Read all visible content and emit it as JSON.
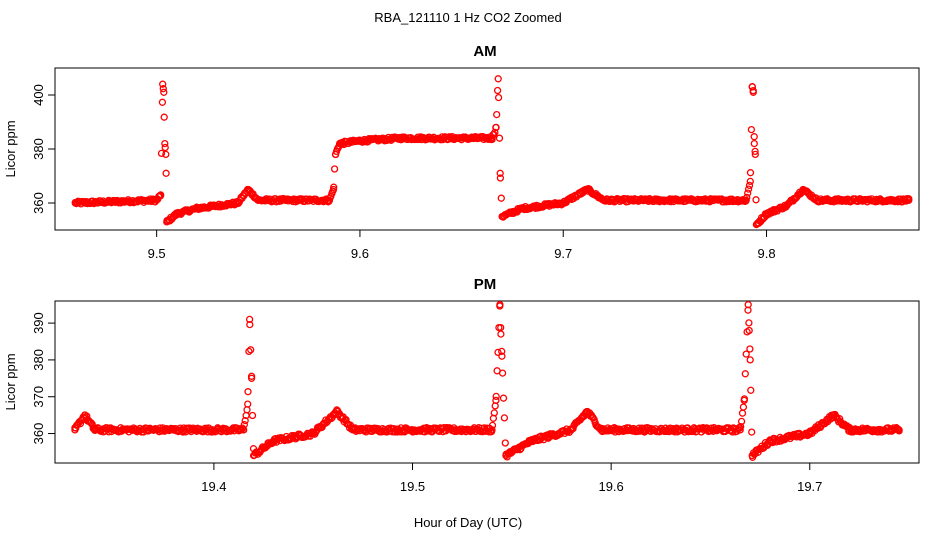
{
  "figure": {
    "title": "RBA_121110  1 Hz CO2 Zoomed",
    "xlabel": "Hour of Day (UTC)"
  },
  "colors": {
    "points": "#ff0000",
    "axis": "#000000",
    "background": "#ffffff"
  },
  "chart_data": [
    {
      "type": "scatter",
      "title": "AM",
      "xlabel": "",
      "ylabel": "Licor ppm",
      "xlim": [
        9.45,
        9.875
      ],
      "ylim": [
        350,
        410
      ],
      "xticks": [
        9.5,
        9.6,
        9.7,
        9.8
      ],
      "xtick_labels": [
        "9.5",
        "9.6",
        "9.7",
        "9.8"
      ],
      "yticks": [
        360,
        380,
        400
      ],
      "ytick_labels": [
        "360",
        "380",
        "400"
      ],
      "grid": false,
      "marker": "open-circle",
      "series_profile": [
        {
          "x": 9.46,
          "y": 360
        },
        {
          "x": 9.5,
          "y": 361
        },
        {
          "x": 9.502,
          "y": 363
        },
        {
          "x": 9.503,
          "y": 404
        },
        {
          "x": 9.5035,
          "y": 401
        },
        {
          "x": 9.504,
          "y": 382
        },
        {
          "x": 9.5045,
          "y": 378
        },
        {
          "x": 9.505,
          "y": 353
        },
        {
          "x": 9.51,
          "y": 356
        },
        {
          "x": 9.52,
          "y": 358
        },
        {
          "x": 9.54,
          "y": 360
        },
        {
          "x": 9.545,
          "y": 365
        },
        {
          "x": 9.55,
          "y": 361
        },
        {
          "x": 9.585,
          "y": 361
        },
        {
          "x": 9.587,
          "y": 365
        },
        {
          "x": 9.588,
          "y": 378
        },
        {
          "x": 9.59,
          "y": 382
        },
        {
          "x": 9.6,
          "y": 383
        },
        {
          "x": 9.62,
          "y": 384
        },
        {
          "x": 9.665,
          "y": 384
        },
        {
          "x": 9.667,
          "y": 388
        },
        {
          "x": 9.668,
          "y": 406
        },
        {
          "x": 9.669,
          "y": 371
        },
        {
          "x": 9.67,
          "y": 355
        },
        {
          "x": 9.68,
          "y": 358
        },
        {
          "x": 9.7,
          "y": 360
        },
        {
          "x": 9.712,
          "y": 365
        },
        {
          "x": 9.72,
          "y": 361
        },
        {
          "x": 9.79,
          "y": 361
        },
        {
          "x": 9.792,
          "y": 368
        },
        {
          "x": 9.793,
          "y": 403
        },
        {
          "x": 9.7935,
          "y": 401
        },
        {
          "x": 9.794,
          "y": 382
        },
        {
          "x": 9.7945,
          "y": 378
        },
        {
          "x": 9.795,
          "y": 352
        },
        {
          "x": 9.8,
          "y": 356
        },
        {
          "x": 9.81,
          "y": 359
        },
        {
          "x": 9.818,
          "y": 365
        },
        {
          "x": 9.825,
          "y": 361
        },
        {
          "x": 9.87,
          "y": 361
        }
      ]
    },
    {
      "type": "scatter",
      "title": "PM",
      "xlabel": "",
      "ylabel": "Licor ppm",
      "xlim": [
        19.32,
        19.755
      ],
      "ylim": [
        352,
        396
      ],
      "xticks": [
        19.4,
        19.5,
        19.6,
        19.7
      ],
      "xtick_labels": [
        "19.4",
        "19.5",
        "19.6",
        "19.7"
      ],
      "yticks": [
        360,
        370,
        380,
        390
      ],
      "ytick_labels": [
        "360",
        "370",
        "380",
        "390"
      ],
      "grid": false,
      "marker": "open-circle",
      "series_profile": [
        {
          "x": 19.33,
          "y": 361
        },
        {
          "x": 19.335,
          "y": 365
        },
        {
          "x": 19.34,
          "y": 361
        },
        {
          "x": 19.415,
          "y": 361
        },
        {
          "x": 19.417,
          "y": 368
        },
        {
          "x": 19.418,
          "y": 391
        },
        {
          "x": 19.419,
          "y": 375
        },
        {
          "x": 19.42,
          "y": 354
        },
        {
          "x": 19.43,
          "y": 358
        },
        {
          "x": 19.45,
          "y": 360
        },
        {
          "x": 19.462,
          "y": 366
        },
        {
          "x": 19.47,
          "y": 361
        },
        {
          "x": 19.54,
          "y": 361
        },
        {
          "x": 19.542,
          "y": 369
        },
        {
          "x": 19.544,
          "y": 395
        },
        {
          "x": 19.5445,
          "y": 387
        },
        {
          "x": 19.545,
          "y": 381
        },
        {
          "x": 19.547,
          "y": 354
        },
        {
          "x": 19.56,
          "y": 358
        },
        {
          "x": 19.58,
          "y": 361
        },
        {
          "x": 19.588,
          "y": 366
        },
        {
          "x": 19.595,
          "y": 361
        },
        {
          "x": 19.665,
          "y": 361
        },
        {
          "x": 19.667,
          "y": 369
        },
        {
          "x": 19.669,
          "y": 395
        },
        {
          "x": 19.6695,
          "y": 388
        },
        {
          "x": 19.67,
          "y": 380
        },
        {
          "x": 19.671,
          "y": 354
        },
        {
          "x": 19.68,
          "y": 358
        },
        {
          "x": 19.7,
          "y": 360
        },
        {
          "x": 19.712,
          "y": 365
        },
        {
          "x": 19.72,
          "y": 361
        },
        {
          "x": 19.745,
          "y": 361
        }
      ]
    }
  ]
}
